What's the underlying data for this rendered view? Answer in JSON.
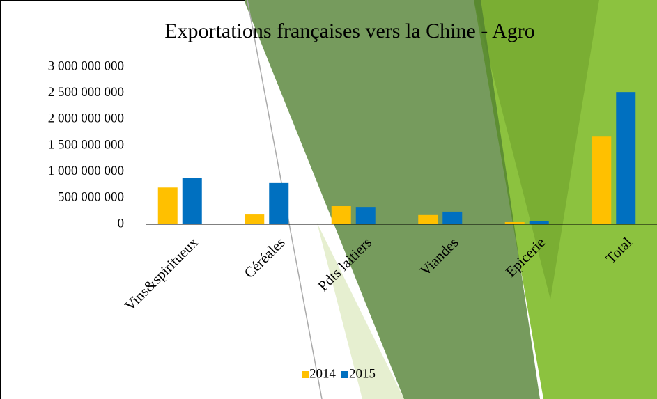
{
  "chart_data": {
    "type": "bar",
    "title": "Exportations françaises vers la Chine - Agro",
    "categories": [
      "Vins&spiritueux",
      "Céréales",
      "Pdts laitiers",
      "Viandes",
      "Epicerie",
      "Total"
    ],
    "series": [
      {
        "name": "2014",
        "color": "#FFC000",
        "values": [
          700000000,
          185000000,
          345000000,
          175000000,
          40000000,
          1670000000
        ]
      },
      {
        "name": "2015",
        "color": "#0070C0",
        "values": [
          880000000,
          785000000,
          330000000,
          240000000,
          53000000,
          2520000000
        ]
      }
    ],
    "ylim": [
      0,
      3000000000
    ],
    "yticks": [
      {
        "value": 0,
        "label": "0"
      },
      {
        "value": 500000000,
        "label": "500 000 000"
      },
      {
        "value": 1000000000,
        "label": "1 000 000 000"
      },
      {
        "value": 1500000000,
        "label": "1 500 000 000"
      },
      {
        "value": 2000000000,
        "label": "2 000 000 000"
      },
      {
        "value": 2500000000,
        "label": "2 500 000 000"
      },
      {
        "value": 3000000000,
        "label": "3 000 000 000"
      }
    ],
    "legend": "bottom"
  }
}
